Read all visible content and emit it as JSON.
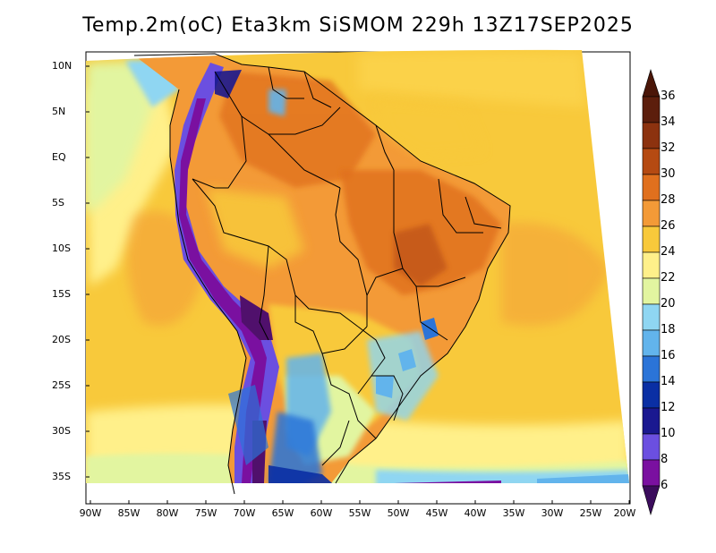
{
  "title": "Temp.2m(oC) Eta3km SiSMOM 229h 13Z17SEP2025",
  "map": {
    "variable": "2 m temperature",
    "region": "South America",
    "lat_labels": [
      "10N",
      "5N",
      "EQ",
      "5S",
      "10S",
      "15S",
      "20S",
      "25S",
      "30S",
      "35S"
    ],
    "lon_labels": [
      "90W",
      "85W",
      "80W",
      "75W",
      "70W",
      "65W",
      "60W",
      "55W",
      "50W",
      "45W",
      "40W",
      "35W",
      "30W",
      "25W",
      "20W"
    ]
  },
  "colorbar": {
    "labels": [
      "36",
      "34",
      "32",
      "30",
      "28",
      "26",
      "24",
      "22",
      "20",
      "18",
      "16",
      "14",
      "12",
      "10",
      "8",
      "6"
    ],
    "colors": [
      "#5c1e0c",
      "#8c320f",
      "#b54a12",
      "#e0701e",
      "#f39a37",
      "#f8c93b",
      "#fff08a",
      "#e2f5a0",
      "#c9ec9e",
      "#8fd6f2",
      "#62b4ec",
      "#2b74d8",
      "#0a2fa4",
      "#1a1890",
      "#6b4fe0",
      "#7a10a0",
      "#50106c"
    ],
    "top_color": "#4a1608",
    "bottom_color": "#3b0c5c"
  }
}
